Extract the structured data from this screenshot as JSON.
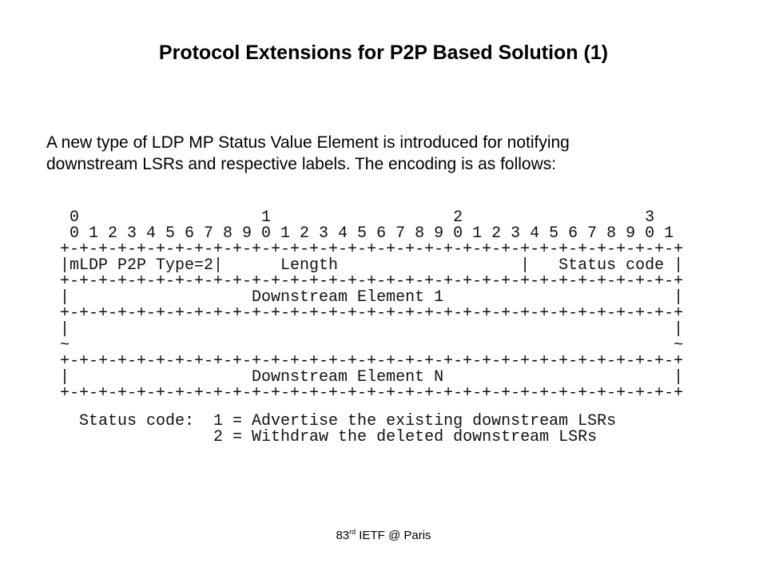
{
  "title": "Protocol Extensions for P2P Based Solution (1)",
  "intro": [
    "A new type of LDP MP Status Value Element is introduced for notifying",
    "downstream LSRs and respective labels. The encoding is as follows:"
  ],
  "diagram": [
    " 0                   1                   2                   3",
    " 0 1 2 3 4 5 6 7 8 9 0 1 2 3 4 5 6 7 8 9 0 1 2 3 4 5 6 7 8 9 0 1",
    "+-+-+-+-+-+-+-+-+-+-+-+-+-+-+-+-+-+-+-+-+-+-+-+-+-+-+-+-+-+-+-+-+",
    "|mLDP P2P Type=2|      Length                   |   Status code |",
    "+-+-+-+-+-+-+-+-+-+-+-+-+-+-+-+-+-+-+-+-+-+-+-+-+-+-+-+-+-+-+-+-+",
    "|                   Downstream Element 1                        |",
    "+-+-+-+-+-+-+-+-+-+-+-+-+-+-+-+-+-+-+-+-+-+-+-+-+-+-+-+-+-+-+-+-+",
    "|                                                               |",
    "~                                                               ~",
    "+-+-+-+-+-+-+-+-+-+-+-+-+-+-+-+-+-+-+-+-+-+-+-+-+-+-+-+-+-+-+-+-+",
    "|                   Downstream Element N                        |",
    "+-+-+-+-+-+-+-+-+-+-+-+-+-+-+-+-+-+-+-+-+-+-+-+-+-+-+-+-+-+-+-+-+"
  ],
  "status_codes": [
    "  Status code:  1 = Advertise the existing downstream LSRs",
    "                2 = Withdraw the deleted downstream LSRs"
  ],
  "footer": {
    "number": "83",
    "suffix": "rd",
    "rest": " IETF @ Paris"
  }
}
